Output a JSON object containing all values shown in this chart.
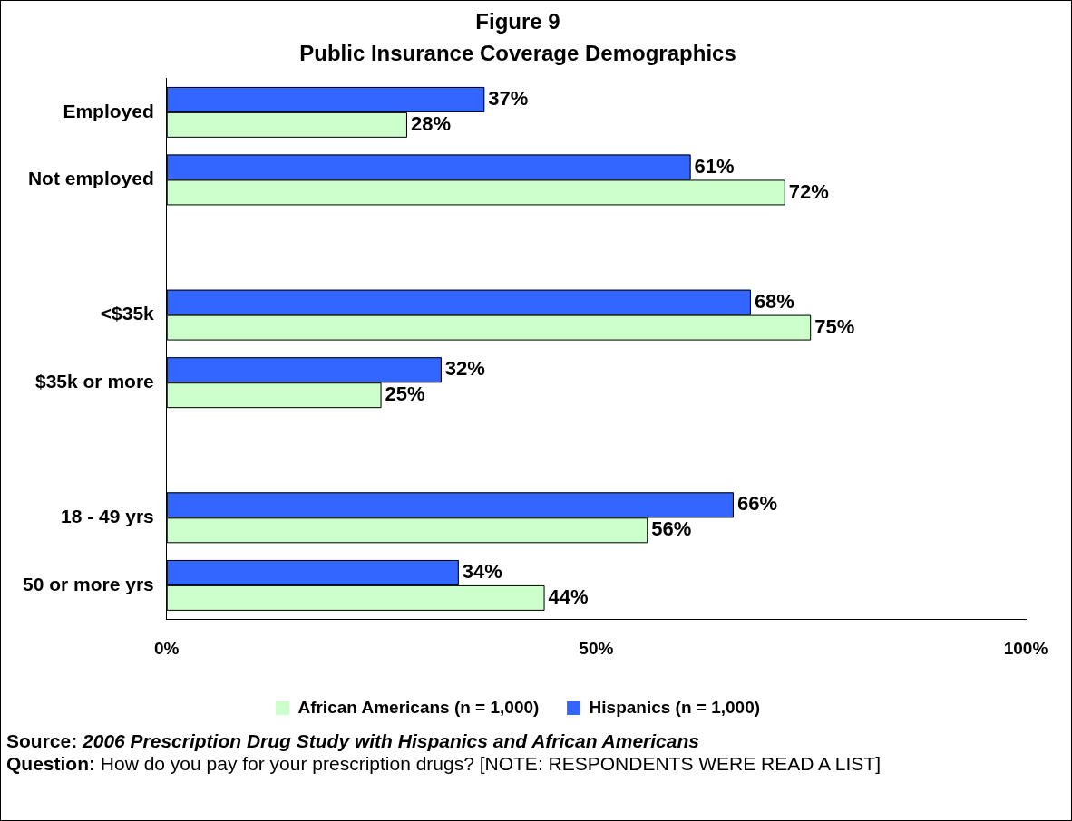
{
  "chart_data": {
    "type": "bar",
    "orientation": "horizontal",
    "title": "Figure 9",
    "subtitle": "Public Insurance Coverage Demographics",
    "categories": [
      "Employed",
      "Not employed",
      null,
      "<$35k",
      "$35k or more",
      null,
      "18 - 49 yrs",
      "50 or more yrs"
    ],
    "series": [
      {
        "name": "African Americans (n = 1,000)",
        "color": "#ccffcc",
        "values": [
          28,
          72,
          null,
          75,
          25,
          null,
          56,
          44
        ],
        "value_labels": [
          "28%",
          "72%",
          null,
          "75%",
          "25%",
          null,
          "56%",
          "44%"
        ]
      },
      {
        "name": "Hispanics (n = 1,000)",
        "color": "#3366ff",
        "values": [
          37,
          61,
          null,
          68,
          32,
          null,
          66,
          34
        ],
        "value_labels": [
          "37%",
          "61%",
          null,
          "68%",
          "32%",
          null,
          "66%",
          "34%"
        ]
      }
    ],
    "xlim": [
      0,
      100
    ],
    "xticks": [
      {
        "value": 0,
        "label": "0%"
      },
      {
        "value": 50,
        "label": "50%"
      },
      {
        "value": 100,
        "label": "100%"
      }
    ],
    "grid": false,
    "legend": "bottom",
    "annotations": [
      "Source: 2006 Prescription Drug Study with Hispanics and African Americans",
      "Question: How do you pay for your prescription drugs? [NOTE: RESPONDENTS WERE READ A LIST]"
    ]
  }
}
